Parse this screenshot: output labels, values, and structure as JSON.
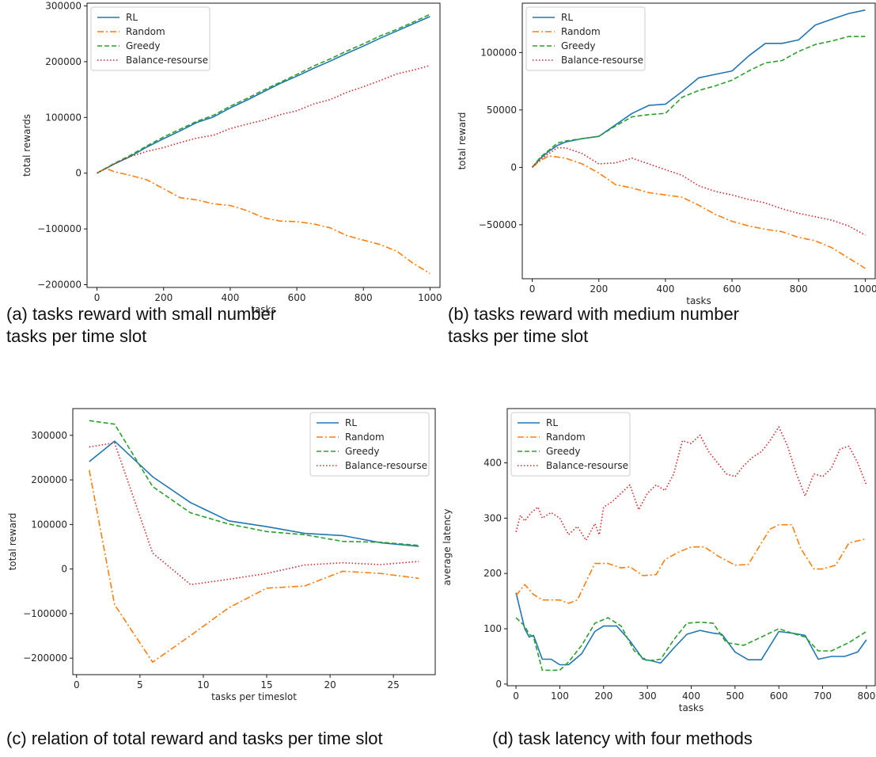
{
  "colors": {
    "RL": "#1f77b4",
    "Random": "#ff7f0e",
    "Greedy": "#2ca02c",
    "Balance-resourse": "#d62728"
  },
  "chart_data": [
    {
      "type": "line",
      "caption": [
        "(a) tasks reward with small number",
        "tasks per time slot"
      ],
      "xlabel": "tasks",
      "ylabel": "total rewards",
      "xlim": [
        -30,
        1030
      ],
      "ylim": [
        -205000,
        305000
      ],
      "xticks": [
        0,
        200,
        400,
        600,
        800,
        1000
      ],
      "xtick_labels": [
        "0",
        "200",
        "400",
        "600",
        "800",
        "1000"
      ],
      "yticks": [
        -200000,
        -100000,
        0,
        100000,
        200000,
        300000
      ],
      "ytick_labels": [
        "−200000",
        "−100000",
        "0",
        "100000",
        "200000",
        "300000"
      ],
      "legend": [
        "RL",
        "Random",
        "Greedy",
        "Balance-resourse"
      ],
      "legend_position": "upper-left",
      "series": [
        {
          "name": "RL",
          "style": "solid",
          "x": [
            0,
            50,
            100,
            150,
            200,
            250,
            300,
            350,
            400,
            450,
            500,
            550,
            600,
            650,
            700,
            750,
            800,
            850,
            900,
            950,
            1000
          ],
          "y": [
            0,
            16000,
            30000,
            47000,
            62000,
            76000,
            91000,
            101000,
            117000,
            131000,
            146000,
            161000,
            174000,
            188000,
            201000,
            215000,
            228000,
            242000,
            255000,
            268000,
            281000
          ]
        },
        {
          "name": "Random",
          "style": "dashdot",
          "x": [
            0,
            25,
            50,
            100,
            150,
            200,
            250,
            300,
            350,
            400,
            450,
            500,
            550,
            600,
            650,
            700,
            750,
            800,
            850,
            900,
            950,
            1000
          ],
          "y": [
            0,
            9000,
            3000,
            -4000,
            -12000,
            -28000,
            -44000,
            -48000,
            -55000,
            -58000,
            -67000,
            -80000,
            -86000,
            -87000,
            -91000,
            -98000,
            -112000,
            -120000,
            -128000,
            -140000,
            -162000,
            -180000
          ]
        },
        {
          "name": "Greedy",
          "style": "dashed",
          "x": [
            0,
            50,
            100,
            150,
            200,
            250,
            300,
            350,
            400,
            450,
            500,
            550,
            600,
            650,
            700,
            750,
            800,
            850,
            900,
            950,
            1000
          ],
          "y": [
            0,
            17000,
            32000,
            49000,
            65000,
            79000,
            93000,
            104000,
            120000,
            134000,
            149000,
            163000,
            177000,
            192000,
            205000,
            219000,
            232000,
            246000,
            258000,
            271000,
            285000
          ]
        },
        {
          "name": "Balance-resourse",
          "style": "dotted",
          "x": [
            0,
            50,
            100,
            150,
            200,
            250,
            300,
            350,
            400,
            450,
            500,
            550,
            600,
            650,
            700,
            750,
            800,
            850,
            900,
            950,
            1000
          ],
          "y": [
            0,
            16000,
            30000,
            39000,
            46000,
            55000,
            63000,
            68000,
            80000,
            88000,
            95000,
            105000,
            112000,
            124000,
            132000,
            145000,
            155000,
            166000,
            178000,
            185000,
            193000
          ]
        }
      ]
    },
    {
      "type": "line",
      "caption": [
        "(b) tasks reward with medium number",
        "tasks per time slot"
      ],
      "xlabel": "tasks",
      "ylabel": "total reward",
      "xlim": [
        -30,
        1030
      ],
      "ylim": [
        -97000,
        143000
      ],
      "xticks": [
        0,
        200,
        400,
        600,
        800,
        1000
      ],
      "xtick_labels": [
        "0",
        "200",
        "400",
        "600",
        "800",
        "1000"
      ],
      "yticks": [
        -50000,
        0,
        50000,
        100000
      ],
      "ytick_labels": [
        "−50000",
        "0",
        "50000",
        "100000"
      ],
      "legend": [
        "RL",
        "Random",
        "Greedy",
        "Balance-resourse"
      ],
      "legend_position": "upper-left",
      "series": [
        {
          "name": "RL",
          "style": "solid",
          "x": [
            0,
            25,
            50,
            75,
            100,
            150,
            200,
            250,
            300,
            350,
            400,
            450,
            500,
            550,
            600,
            650,
            700,
            750,
            800,
            850,
            900,
            950,
            1000
          ],
          "y": [
            0,
            8000,
            14000,
            19000,
            22000,
            25000,
            27000,
            37000,
            47000,
            54000,
            55000,
            66000,
            78000,
            81000,
            84000,
            97000,
            108000,
            108000,
            111000,
            124000,
            129000,
            134000,
            137000
          ]
        },
        {
          "name": "Random",
          "style": "dashdot",
          "x": [
            0,
            25,
            50,
            100,
            150,
            200,
            250,
            300,
            350,
            400,
            450,
            500,
            550,
            600,
            650,
            700,
            750,
            800,
            850,
            900,
            950,
            1000
          ],
          "y": [
            0,
            6000,
            10000,
            8000,
            3000,
            -5000,
            -15000,
            -18000,
            -22000,
            -24000,
            -26000,
            -33000,
            -41000,
            -47000,
            -51000,
            -54000,
            -56000,
            -61000,
            -64000,
            -70000,
            -79000,
            -88000
          ]
        },
        {
          "name": "Greedy",
          "style": "dashed",
          "x": [
            0,
            25,
            50,
            75,
            100,
            150,
            200,
            250,
            300,
            350,
            400,
            450,
            500,
            550,
            600,
            650,
            700,
            750,
            800,
            850,
            900,
            950,
            1000
          ],
          "y": [
            0,
            9000,
            15000,
            21000,
            23000,
            25000,
            27000,
            36000,
            44000,
            46000,
            47000,
            61000,
            67000,
            71000,
            76000,
            84000,
            91000,
            93000,
            101000,
            107000,
            110000,
            114000,
            114000
          ]
        },
        {
          "name": "Balance-resourse",
          "style": "dotted",
          "x": [
            0,
            25,
            50,
            75,
            100,
            150,
            200,
            250,
            300,
            350,
            400,
            450,
            500,
            550,
            600,
            650,
            700,
            750,
            800,
            850,
            900,
            950,
            1000
          ],
          "y": [
            0,
            7000,
            12000,
            17000,
            17000,
            12000,
            3000,
            4000,
            8000,
            3000,
            -2000,
            -7000,
            -16000,
            -21000,
            -24000,
            -28000,
            -31000,
            -36000,
            -40000,
            -43000,
            -46000,
            -51000,
            -59000
          ]
        }
      ]
    },
    {
      "type": "line",
      "caption": [
        "(c) relation of total reward and tasks per time slot"
      ],
      "xlabel": "tasks per timeslot",
      "ylabel": "total reward",
      "xlim": [
        -0.3,
        28.3
      ],
      "ylim": [
        -237000,
        360000
      ],
      "xticks": [
        0,
        5,
        10,
        15,
        20,
        25
      ],
      "xtick_labels": [
        "0",
        "5",
        "10",
        "15",
        "20",
        "25"
      ],
      "yticks": [
        -200000,
        -100000,
        0,
        100000,
        200000,
        300000
      ],
      "ytick_labels": [
        "−200000",
        "−100000",
        "0",
        "100000",
        "200000",
        "300000"
      ],
      "legend": [
        "RL",
        "Random",
        "Greedy",
        "Balance-resourse"
      ],
      "legend_position": "upper-right",
      "series": [
        {
          "name": "RL",
          "style": "solid",
          "x": [
            1,
            3,
            6,
            9,
            12,
            15,
            18,
            21,
            24,
            27
          ],
          "y": [
            241000,
            287000,
            207000,
            149000,
            108000,
            95000,
            80000,
            75000,
            59000,
            51000
          ]
        },
        {
          "name": "Random",
          "style": "dashdot",
          "x": [
            1,
            3,
            6,
            9,
            12,
            15,
            18,
            21,
            24,
            27
          ],
          "y": [
            222000,
            -80000,
            -209000,
            -149000,
            -87000,
            -43000,
            -38000,
            -5000,
            -10000,
            -21000
          ]
        },
        {
          "name": "Greedy",
          "style": "dashed",
          "x": [
            1,
            3,
            6,
            9,
            12,
            15,
            18,
            21,
            24,
            27
          ],
          "y": [
            333000,
            325000,
            185000,
            126000,
            101000,
            84000,
            77000,
            62000,
            60000,
            53000
          ]
        },
        {
          "name": "Balance-resourse",
          "style": "dotted",
          "x": [
            1,
            3,
            6,
            9,
            12,
            15,
            18,
            21,
            24,
            27
          ],
          "y": [
            274000,
            283000,
            36000,
            -35000,
            -23000,
            -10000,
            9000,
            14000,
            10000,
            17000
          ]
        }
      ]
    },
    {
      "type": "line",
      "caption": [
        "(d) task latency with four methods"
      ],
      "xlabel": "tasks",
      "ylabel": "average latency",
      "xlim": [
        -20,
        820
      ],
      "ylim": [
        -3,
        498
      ],
      "xticks": [
        0,
        100,
        200,
        300,
        400,
        500,
        600,
        700,
        800
      ],
      "xtick_labels": [
        "0",
        "100",
        "200",
        "300",
        "400",
        "500",
        "600",
        "700",
        "800"
      ],
      "yticks": [
        0,
        100,
        200,
        300,
        400
      ],
      "ytick_labels": [
        "0",
        "100",
        "200",
        "300",
        "400"
      ],
      "legend": [
        "RL",
        "Random",
        "Greedy",
        "Balance-resourse"
      ],
      "legend_position": "upper-left",
      "series": [
        {
          "name": "RL",
          "style": "solid",
          "x": [
            0,
            20,
            30,
            40,
            60,
            80,
            100,
            120,
            150,
            180,
            200,
            230,
            260,
            290,
            310,
            330,
            360,
            390,
            420,
            450,
            470,
            500,
            530,
            560,
            600,
            630,
            660,
            690,
            720,
            750,
            780,
            800
          ],
          "y": [
            165,
            100,
            85,
            88,
            45,
            45,
            35,
            35,
            55,
            95,
            105,
            105,
            78,
            45,
            42,
            38,
            65,
            90,
            97,
            92,
            90,
            58,
            44,
            44,
            95,
            92,
            88,
            45,
            50,
            50,
            58,
            80
          ]
        },
        {
          "name": "Random",
          "style": "dashdot",
          "x": [
            0,
            20,
            40,
            60,
            80,
            100,
            120,
            140,
            160,
            180,
            210,
            240,
            260,
            290,
            320,
            340,
            370,
            400,
            430,
            460,
            500,
            530,
            560,
            580,
            600,
            630,
            650,
            680,
            700,
            730,
            760,
            800
          ],
          "y": [
            160,
            180,
            162,
            152,
            152,
            152,
            146,
            152,
            185,
            218,
            218,
            210,
            212,
            196,
            198,
            225,
            238,
            248,
            248,
            232,
            215,
            216,
            255,
            280,
            288,
            288,
            245,
            208,
            208,
            215,
            255,
            263
          ]
        },
        {
          "name": "Greedy",
          "style": "dashed",
          "x": [
            0,
            20,
            30,
            40,
            50,
            60,
            80,
            100,
            120,
            150,
            180,
            210,
            240,
            270,
            300,
            330,
            360,
            390,
            420,
            450,
            480,
            520,
            560,
            600,
            630,
            660,
            690,
            720,
            760,
            800
          ],
          "y": [
            120,
            105,
            90,
            85,
            55,
            25,
            25,
            25,
            40,
            70,
            110,
            120,
            105,
            60,
            42,
            45,
            80,
            110,
            112,
            110,
            75,
            70,
            85,
            100,
            92,
            85,
            60,
            60,
            75,
            95
          ]
        },
        {
          "name": "Balance-resourse",
          "style": "dotted",
          "x": [
            0,
            10,
            20,
            35,
            50,
            60,
            80,
            100,
            120,
            140,
            160,
            180,
            190,
            200,
            220,
            240,
            260,
            280,
            300,
            320,
            340,
            360,
            380,
            400,
            420,
            440,
            460,
            480,
            500,
            520,
            540,
            560,
            580,
            600,
            620,
            640,
            660,
            680,
            700,
            720,
            740,
            760,
            780,
            800
          ],
          "y": [
            275,
            305,
            295,
            310,
            320,
            300,
            310,
            300,
            270,
            285,
            260,
            290,
            270,
            320,
            330,
            345,
            360,
            315,
            345,
            360,
            350,
            380,
            440,
            435,
            450,
            420,
            400,
            380,
            375,
            395,
            410,
            420,
            440,
            465,
            430,
            380,
            340,
            380,
            375,
            390,
            425,
            430,
            400,
            360
          ]
        }
      ]
    }
  ]
}
